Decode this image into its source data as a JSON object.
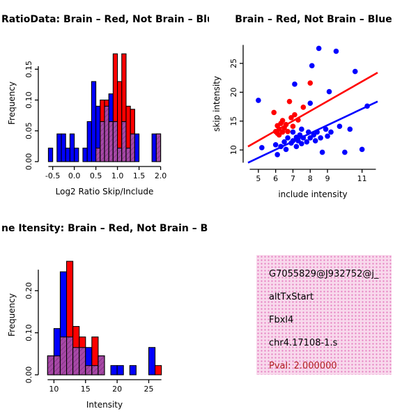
{
  "figure": {
    "background": "#ffffff",
    "series_colors": {
      "brain": "#FF0000",
      "not_brain": "#0000FF"
    }
  },
  "info_box": {
    "bg_color": "#F8D9EC",
    "dot_color": "#E57FC0",
    "text_color": "#000000",
    "pval_color": "#B22222",
    "lines": [
      "G7055829@J932752@j_",
      "altTxStart",
      "Fbxl4",
      "chr4.17108-1.s"
    ],
    "pval": "Pval: 2.000000"
  },
  "chart_data": [
    {
      "type": "bar",
      "panel": "top-left",
      "title": "RatioData: Brain – Red, Not Brain – Blu",
      "xlabel": "Log2 Ratio Skip/Include",
      "ylabel": "Frequency",
      "xlim": [
        -0.72,
        2.12
      ],
      "ylim": [
        0,
        0.19
      ],
      "axis_x_range": [
        -0.6,
        2.0
      ],
      "axis_y_range": [
        0,
        0.155
      ],
      "xticks": [
        -0.5,
        0.0,
        0.5,
        1.0,
        1.5,
        2.0
      ],
      "xtick_labels": [
        "-0.5",
        "0.0",
        "0.5",
        "1.0",
        "1.5",
        "2.0"
      ],
      "yticks": [
        0,
        0.05,
        0.1,
        0.15
      ],
      "ytick_labels": [
        "0.00",
        "0.05",
        "0.10",
        "0.15"
      ],
      "bin_start": -0.6,
      "bin_width": 0.1,
      "overlap_color": "#A648A6",
      "overlap_line_color": "#803080",
      "series": [
        {
          "name": "Not Brain",
          "color": "#0000FF",
          "values": [
            0.022,
            0,
            0.045,
            0.045,
            0.022,
            0.045,
            0.022,
            0,
            0.022,
            0.065,
            0.13,
            0.09,
            0.065,
            0.09,
            0.11,
            0.065,
            0.022,
            0.065,
            0.022,
            0.045,
            0.045,
            0,
            0,
            0,
            0.045,
            0.045
          ]
        },
        {
          "name": "Brain",
          "color": "#FF0000",
          "values": [
            0,
            0,
            0,
            0,
            0,
            0,
            0,
            0,
            0,
            0,
            0,
            0.022,
            0.1,
            0.1,
            0.065,
            0.175,
            0.13,
            0.175,
            0.09,
            0.085,
            0,
            0,
            0,
            0,
            0,
            0.045
          ]
        }
      ]
    },
    {
      "type": "scatter",
      "panel": "top-right",
      "title": "Brain – Red, Not Brain – Blue",
      "xlabel": "include intensity",
      "ylabel": "skip intensity",
      "xlim": [
        4.4,
        11.9
      ],
      "ylim": [
        7.5,
        28.5
      ],
      "axis_x_range": [
        4.5,
        11.8
      ],
      "axis_y_range": [
        7.8,
        28.2
      ],
      "xticks": [
        5,
        6,
        7,
        8,
        9,
        11
      ],
      "xtick_labels": [
        "5",
        "6",
        "7",
        "8",
        "9",
        "11"
      ],
      "yticks": [
        10,
        15,
        20,
        25
      ],
      "ytick_labels": [
        "10",
        "15",
        "20",
        "25"
      ],
      "series": [
        {
          "name": "Not Brain",
          "color": "#0000FF",
          "points": [
            [
              5.0,
              18.6
            ],
            [
              5.2,
              10.4
            ],
            [
              6.0,
              10.9
            ],
            [
              6.1,
              9.2
            ],
            [
              6.3,
              10.6
            ],
            [
              6.5,
              11.4
            ],
            [
              6.6,
              10.1
            ],
            [
              6.7,
              12.1
            ],
            [
              6.9,
              11.2
            ],
            [
              7.0,
              11.6
            ],
            [
              7.0,
              13.1
            ],
            [
              7.1,
              21.4
            ],
            [
              7.2,
              10.6
            ],
            [
              7.2,
              12.2
            ],
            [
              7.3,
              11.6
            ],
            [
              7.4,
              12.6
            ],
            [
              7.5,
              11.1
            ],
            [
              7.5,
              13.6
            ],
            [
              7.6,
              12.1
            ],
            [
              7.8,
              11.4
            ],
            [
              7.9,
              13.1
            ],
            [
              8.0,
              12.1
            ],
            [
              8.0,
              18.1
            ],
            [
              8.1,
              24.6
            ],
            [
              8.2,
              12.6
            ],
            [
              8.3,
              11.6
            ],
            [
              8.4,
              13.1
            ],
            [
              8.5,
              27.6
            ],
            [
              8.6,
              12.1
            ],
            [
              8.7,
              9.6
            ],
            [
              8.9,
              13.6
            ],
            [
              9.0,
              12.4
            ],
            [
              9.1,
              20.1
            ],
            [
              9.2,
              13.1
            ],
            [
              9.5,
              27.1
            ],
            [
              9.7,
              14.1
            ],
            [
              10.0,
              9.6
            ],
            [
              10.3,
              13.6
            ],
            [
              10.6,
              23.6
            ],
            [
              11.0,
              10.1
            ],
            [
              11.3,
              17.6
            ]
          ]
        },
        {
          "name": "Brain",
          "color": "#FF0000",
          "points": [
            [
              5.9,
              16.5
            ],
            [
              6.0,
              13.2
            ],
            [
              6.1,
              14.2
            ],
            [
              6.1,
              12.9
            ],
            [
              6.2,
              12.6
            ],
            [
              6.2,
              13.6
            ],
            [
              6.3,
              14.6
            ],
            [
              6.4,
              13.1
            ],
            [
              6.4,
              15.1
            ],
            [
              6.5,
              13.8
            ],
            [
              6.6,
              14.4
            ],
            [
              6.7,
              13.2
            ],
            [
              6.8,
              18.4
            ],
            [
              6.9,
              15.6
            ],
            [
              7.0,
              14.1
            ],
            [
              7.1,
              16.1
            ],
            [
              7.3,
              15.2
            ],
            [
              7.6,
              17.4
            ],
            [
              8.0,
              21.6
            ]
          ]
        }
      ],
      "fit_lines": [
        {
          "name": "brain-fit",
          "color": "#FF0000",
          "x1": 4.4,
          "y1": 10.6,
          "x2": 11.9,
          "y2": 23.4
        },
        {
          "name": "not-brain-fit",
          "color": "#0000FF",
          "x1": 4.4,
          "y1": 7.8,
          "x2": 11.9,
          "y2": 18.4
        }
      ]
    },
    {
      "type": "bar",
      "panel": "bottom-left",
      "title": "ne Itensity: Brain – Red, Not Brain – B",
      "xlabel": "Intensity",
      "ylabel": "Frequency",
      "xlim": [
        8.3,
        27.7
      ],
      "ylim": [
        0,
        0.285
      ],
      "axis_x_range": [
        9,
        27
      ],
      "axis_y_range": [
        0,
        0.25
      ],
      "xticks": [
        10,
        15,
        20,
        25
      ],
      "xtick_labels": [
        "10",
        "15",
        "20",
        "25"
      ],
      "yticks": [
        0,
        0.1,
        0.2
      ],
      "ytick_labels": [
        "0.00",
        "0.10",
        "0.20"
      ],
      "bin_start": 9,
      "bin_width": 1,
      "overlap_color": "#A648A6",
      "overlap_line_color": "#803080",
      "series": [
        {
          "name": "Not Brain",
          "color": "#0000FF",
          "values": [
            0.045,
            0.11,
            0.245,
            0.09,
            0.065,
            0.065,
            0.065,
            0.022,
            0.045,
            0,
            0.022,
            0.022,
            0,
            0.022,
            0,
            0,
            0.065,
            0
          ]
        },
        {
          "name": "Brain",
          "color": "#FF0000",
          "values": [
            0.045,
            0.045,
            0.09,
            0.27,
            0.115,
            0.09,
            0.022,
            0.09,
            0.045,
            0,
            0,
            0,
            0,
            0,
            0,
            0,
            0,
            0.022
          ]
        }
      ]
    }
  ]
}
